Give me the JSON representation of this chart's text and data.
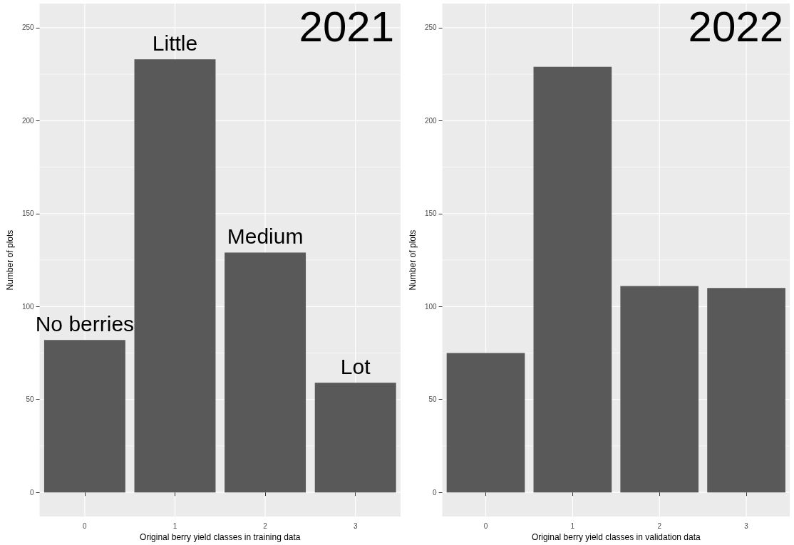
{
  "chart_data": [
    {
      "type": "bar",
      "title": "2021",
      "xlabel": "Original berry yield classes in training data",
      "ylabel": "Number of plots",
      "categories": [
        "0",
        "1",
        "2",
        "3"
      ],
      "values": [
        82,
        233,
        129,
        59
      ],
      "color": "#595959",
      "ylim": [
        -13,
        263
      ],
      "yticks": [
        0,
        {
          "value": 25,
          "label": null
        },
        50,
        {
          "value": 75,
          "label": null
        },
        100,
        {
          "value": 125,
          "label": null
        },
        150,
        {
          "value": 175,
          "label": null
        },
        200,
        {
          "value": 225,
          "label": null
        },
        250
      ],
      "grid": true,
      "annotations": [
        "No berries",
        "Little",
        "Medium",
        "Lot"
      ]
    },
    {
      "type": "bar",
      "title": "2022",
      "xlabel": "Original berry yield classes in validation data",
      "ylabel": "Number of plots",
      "categories": [
        "0",
        "1",
        "2",
        "3"
      ],
      "values": [
        75,
        229,
        111,
        110
      ],
      "color": "#595959",
      "ylim": [
        -13,
        263
      ],
      "yticks": [
        0,
        {
          "value": 25,
          "label": null
        },
        50,
        {
          "value": 75,
          "label": null
        },
        100,
        {
          "value": 125,
          "label": null
        },
        150,
        {
          "value": 175,
          "label": null
        },
        200,
        {
          "value": 225,
          "label": null
        },
        250
      ],
      "grid": true
    }
  ]
}
